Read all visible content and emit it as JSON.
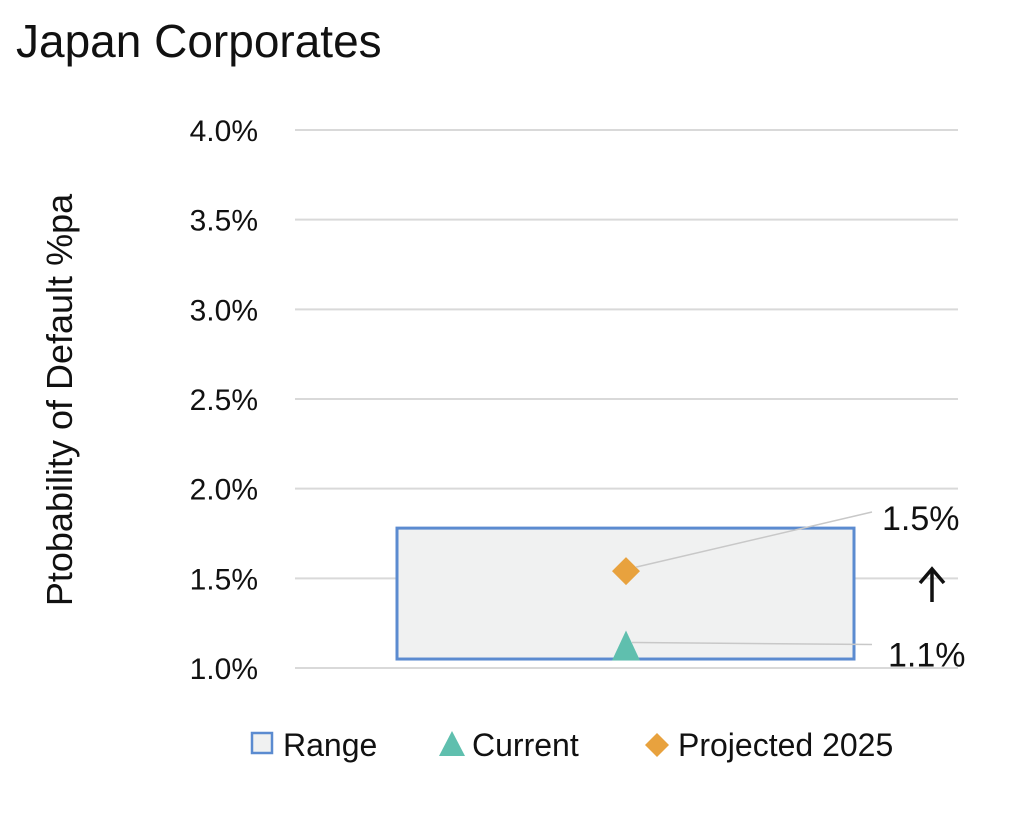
{
  "chart_data": {
    "type": "scatter",
    "title": "Japan Corporates",
    "ylabel": "Ptobability of Default %pa",
    "xlabel": "",
    "ylim": [
      1.0,
      4.0
    ],
    "yticks": [
      {
        "value": 4.0,
        "label": "4.0%"
      },
      {
        "value": 3.5,
        "label": "3.5%"
      },
      {
        "value": 3.0,
        "label": "3.0%"
      },
      {
        "value": 2.5,
        "label": "2.5%"
      },
      {
        "value": 2.0,
        "label": "2.0%"
      },
      {
        "value": 1.5,
        "label": "1.5%"
      },
      {
        "value": 1.0,
        "label": "1.0%"
      }
    ],
    "grid": true,
    "range": {
      "name": "Range",
      "low": 1.05,
      "high": 1.78,
      "color": "#5b8bd0",
      "fill": "#f0f1f1"
    },
    "series": [
      {
        "name": "Current",
        "value": 1.12,
        "marker": "triangle",
        "color": "#5fbfae",
        "label": "1.1%"
      },
      {
        "name": "Projected 2025",
        "value": 1.54,
        "marker": "diamond",
        "color": "#e8a23e",
        "label": "1.5%"
      }
    ],
    "annotation": {
      "symbol": "↑",
      "meaning": "up-arrow"
    },
    "legend": {
      "placement": "bottom",
      "entries": [
        {
          "label": "Range",
          "marker": "square-outline"
        },
        {
          "label": "Current",
          "marker": "triangle"
        },
        {
          "label": "Projected 2025",
          "marker": "diamond"
        }
      ]
    }
  }
}
